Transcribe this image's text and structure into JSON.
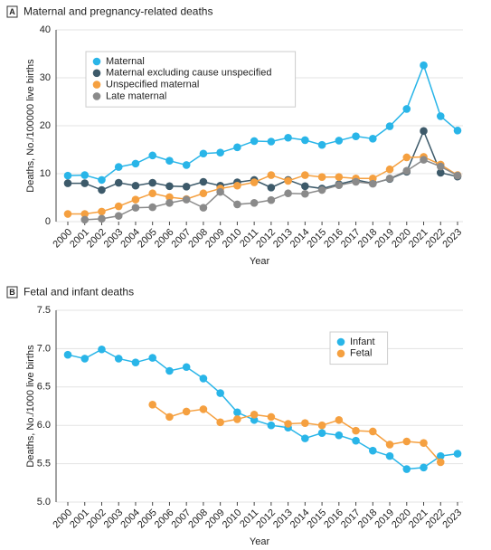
{
  "chart_data": [
    {
      "type": "line",
      "panel": "A",
      "title": "Maternal and pregnancy-related deaths",
      "x_label": "Year",
      "y_label": "Deaths, No./100000 live births",
      "categories": [
        "2000",
        "2001",
        "2002",
        "2003",
        "2004",
        "2005",
        "2006",
        "2007",
        "2008",
        "2009",
        "2010",
        "2011",
        "2012",
        "2013",
        "2014",
        "2015",
        "2016",
        "2017",
        "2018",
        "2019",
        "2020",
        "2021",
        "2022",
        "2023"
      ],
      "ylim": [
        0,
        40
      ],
      "yticks": [
        0,
        10,
        20,
        30,
        40
      ],
      "grid": true,
      "legend": "upper left",
      "series": [
        {
          "name": "Maternal",
          "color": "#29b5e8",
          "values": [
            9.6,
            9.7,
            8.7,
            11.4,
            12.1,
            13.8,
            12.7,
            11.8,
            14.2,
            14.4,
            15.5,
            16.8,
            16.7,
            17.5,
            17.0,
            16.0,
            16.9,
            17.8,
            17.3,
            19.9,
            23.5,
            32.6,
            22.0,
            19.0
          ]
        },
        {
          "name": "Maternal excluding cause unspecified",
          "color": "#3d5a6a",
          "values": [
            8.0,
            8.0,
            6.6,
            8.1,
            7.5,
            8.1,
            7.4,
            7.3,
            8.3,
            7.5,
            8.2,
            8.7,
            7.1,
            8.7,
            7.4,
            6.9,
            7.8,
            8.7,
            8.0,
            8.9,
            10.4,
            18.9,
            10.2,
            9.4
          ]
        },
        {
          "name": "Unspecified maternal",
          "color": "#f5a040",
          "values": [
            1.6,
            1.6,
            2.1,
            3.2,
            4.6,
            5.9,
            5.1,
            4.7,
            5.9,
            6.9,
            7.5,
            8.2,
            9.7,
            8.5,
            9.7,
            9.3,
            9.3,
            9.0,
            9.0,
            10.9,
            13.4,
            13.5,
            11.9,
            9.7
          ]
        },
        {
          "name": "Late maternal",
          "color": "#8a8a8a",
          "values": [
            null,
            0.4,
            0.6,
            1.2,
            2.9,
            3.0,
            3.9,
            4.6,
            2.9,
            6.2,
            3.6,
            3.9,
            4.5,
            5.9,
            5.8,
            6.6,
            7.6,
            8.3,
            7.9,
            9.0,
            10.6,
            12.9,
            11.5,
            9.6
          ]
        }
      ]
    },
    {
      "type": "line",
      "panel": "B",
      "title": "Fetal and infant deaths",
      "x_label": "Year",
      "y_label": "Deaths, No./1000 live births",
      "categories": [
        "2000",
        "2001",
        "2002",
        "2003",
        "2004",
        "2005",
        "2006",
        "2007",
        "2008",
        "2009",
        "2010",
        "2011",
        "2012",
        "2013",
        "2014",
        "2015",
        "2016",
        "2017",
        "2018",
        "2019",
        "2020",
        "2021",
        "2022",
        "2023"
      ],
      "ylim": [
        5,
        7.5
      ],
      "yticks": [
        {
          "value": 5,
          "label": "5.0"
        },
        5.5,
        {
          "value": 6,
          "label": "6.0"
        },
        6.5,
        {
          "value": 7,
          "label": "7.0"
        },
        7.5
      ],
      "grid": true,
      "legend": "upper right",
      "series": [
        {
          "name": "Infant",
          "color": "#29b5e8",
          "values": [
            6.92,
            6.87,
            6.99,
            6.87,
            6.82,
            6.88,
            6.71,
            6.76,
            6.61,
            6.42,
            6.17,
            6.07,
            6.0,
            5.97,
            5.83,
            5.9,
            5.87,
            5.8,
            5.67,
            5.6,
            5.43,
            5.45,
            5.6,
            5.63
          ]
        },
        {
          "name": "Fetal",
          "color": "#f5a040",
          "values": [
            null,
            null,
            null,
            null,
            null,
            6.27,
            6.11,
            6.18,
            6.21,
            6.04,
            6.08,
            6.14,
            6.11,
            6.02,
            6.03,
            6.0,
            6.07,
            5.93,
            5.92,
            5.75,
            5.79,
            5.77,
            5.52,
            null
          ]
        }
      ]
    }
  ]
}
